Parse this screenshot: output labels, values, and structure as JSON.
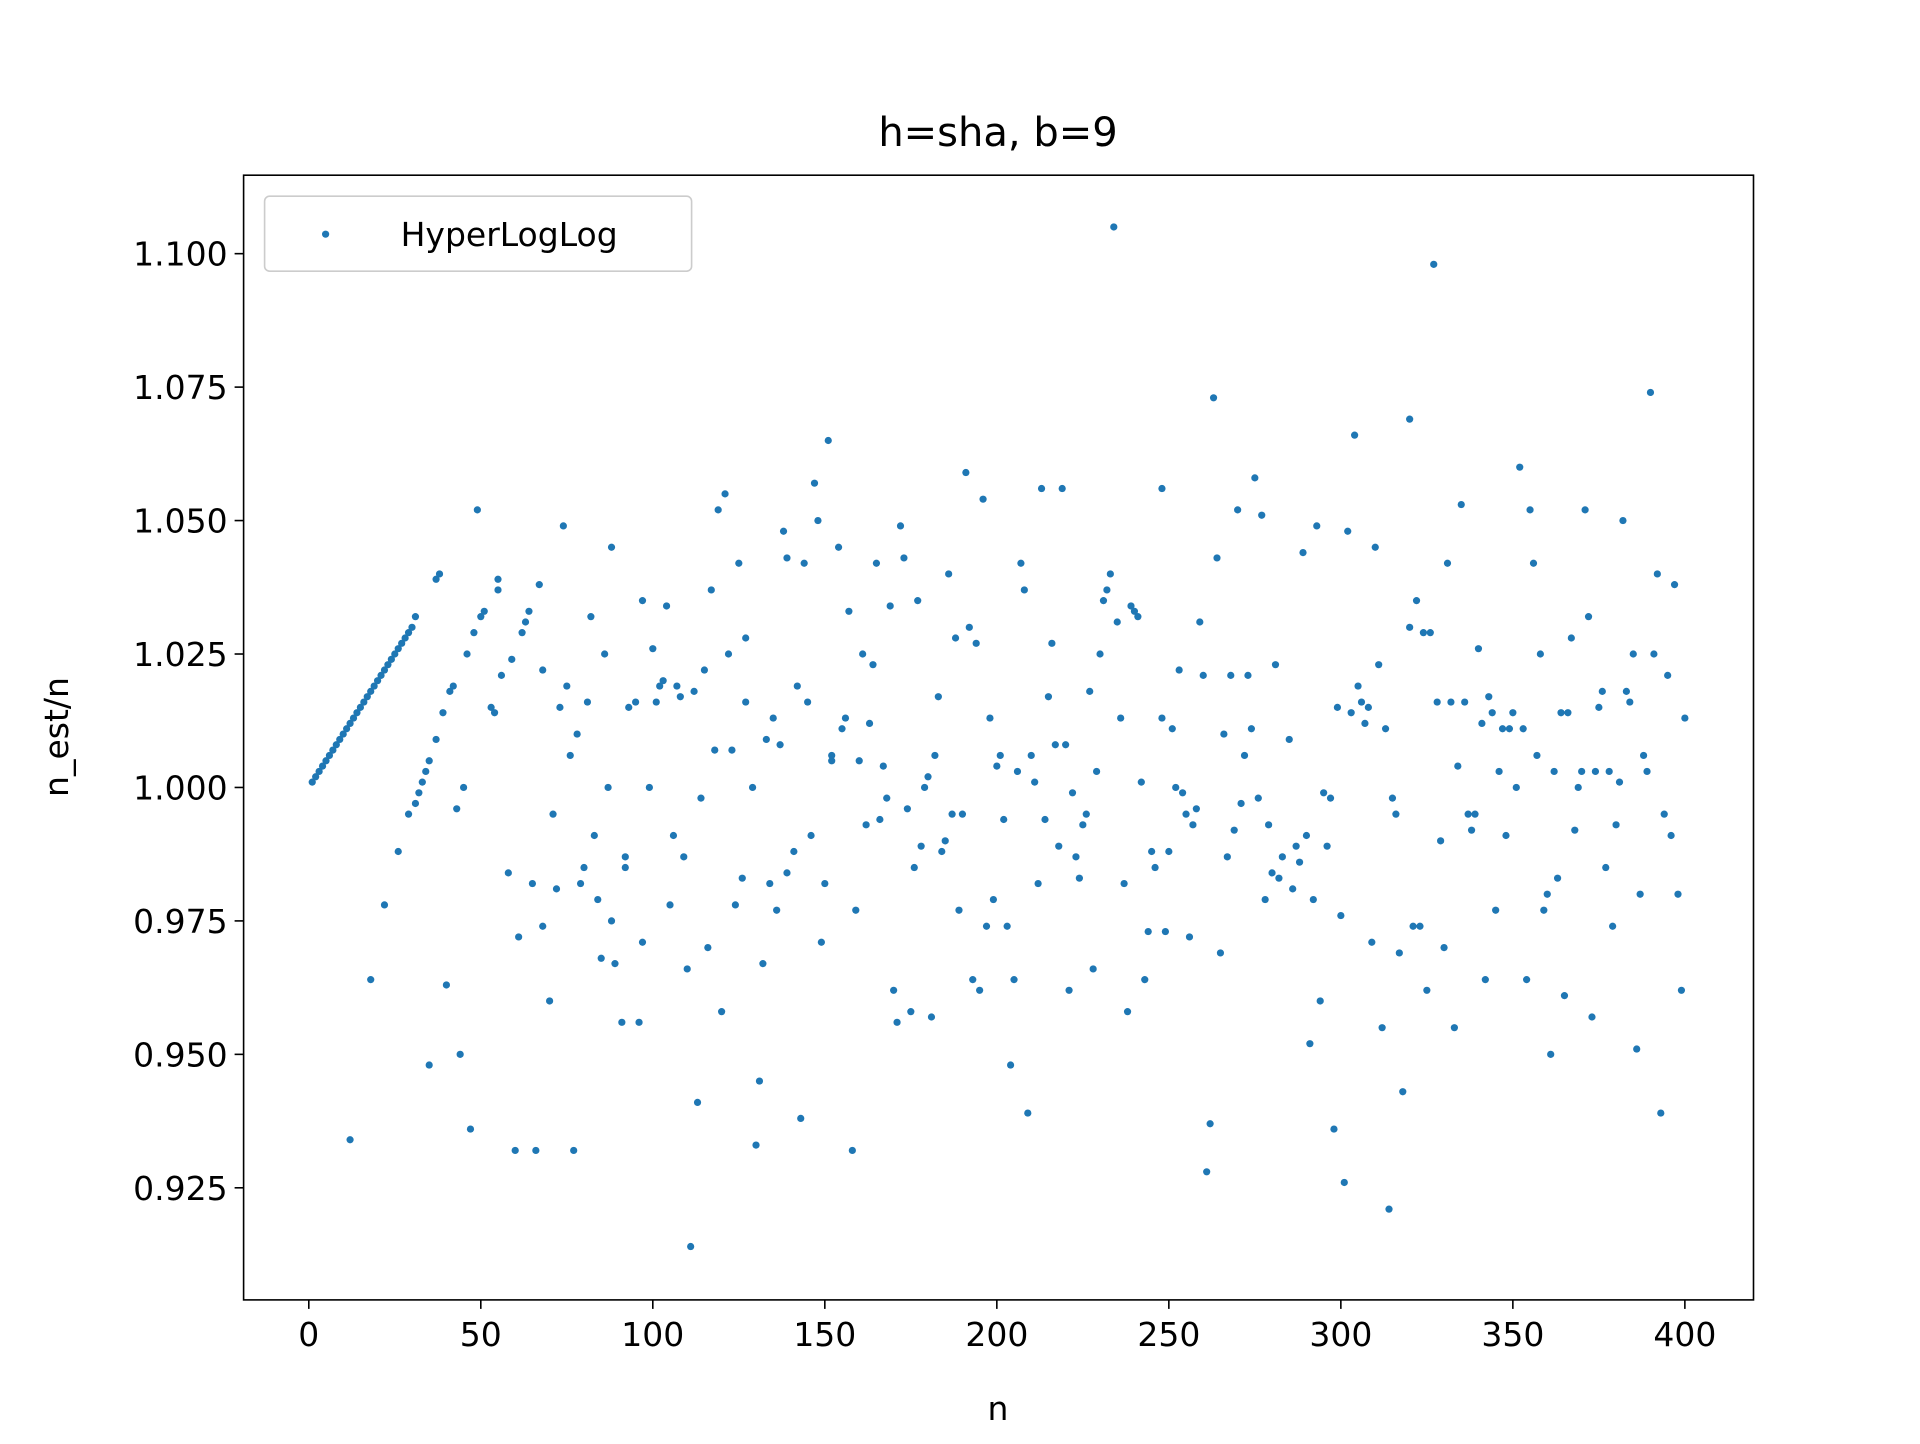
{
  "chart_data": {
    "type": "scatter",
    "title": "h=sha, b=9",
    "x_label": "n",
    "y_label": "n_est/n",
    "xlim": [
      -18.95,
      419.95
    ],
    "ylim": [
      0.904,
      1.1147
    ],
    "xticks": [
      0,
      50,
      100,
      150,
      200,
      250,
      300,
      350,
      400
    ],
    "yticks": [
      {
        "value": 0.925,
        "label": "0.925"
      },
      {
        "value": 0.95,
        "label": "0.950"
      },
      {
        "value": 0.975,
        "label": "0.975"
      },
      {
        "value": 1.0,
        "label": "1.000"
      },
      {
        "value": 1.025,
        "label": "1.025"
      },
      {
        "value": 1.05,
        "label": "1.050"
      },
      {
        "value": 1.075,
        "label": "1.075"
      },
      {
        "value": 1.1,
        "label": "1.100"
      }
    ],
    "grid": false,
    "legend": "upper left",
    "series": [
      {
        "name": "HyperLogLog",
        "color": "#1f77b4",
        "x": [
          1,
          2,
          3,
          4,
          5,
          6,
          7,
          8,
          9,
          10,
          11,
          12,
          13,
          14,
          15,
          16,
          17,
          18,
          19,
          20,
          21,
          22,
          23,
          24,
          25,
          26,
          27,
          28,
          29,
          30,
          31,
          12,
          18,
          22,
          26,
          29,
          31,
          32,
          33,
          34,
          35,
          35,
          37,
          37,
          38,
          39,
          40,
          41,
          42,
          43,
          44,
          45,
          46,
          47,
          48,
          49,
          50,
          51,
          53,
          54,
          55,
          55,
          56,
          58,
          59,
          60,
          61,
          62,
          63,
          64,
          65,
          66,
          67,
          68,
          68,
          70,
          71,
          72,
          73,
          74,
          75,
          76,
          77,
          78,
          79,
          80,
          81,
          82,
          83,
          84,
          85,
          86,
          87,
          88,
          88,
          89,
          91,
          92,
          92,
          93,
          95,
          96,
          97,
          97,
          99,
          100,
          101,
          102,
          103,
          104,
          105,
          106,
          107,
          108,
          109,
          110,
          111,
          112,
          113,
          114,
          115,
          116,
          117,
          118,
          119,
          120,
          121,
          122,
          123,
          124,
          125,
          126,
          127,
          127,
          129,
          130,
          131,
          132,
          133,
          134,
          135,
          136,
          137,
          138,
          139,
          139,
          141,
          142,
          143,
          144,
          145,
          146,
          147,
          148,
          149,
          150,
          151,
          152,
          152,
          154,
          155,
          156,
          157,
          158,
          159,
          160,
          161,
          162,
          163,
          164,
          165,
          166,
          167,
          168,
          169,
          170,
          171,
          172,
          173,
          174,
          175,
          176,
          177,
          178,
          179,
          180,
          181,
          182,
          183,
          184,
          185,
          186,
          187,
          188,
          189,
          190,
          191,
          192,
          193,
          194,
          195,
          196,
          197,
          198,
          199,
          200,
          201,
          202,
          203,
          204,
          205,
          206,
          207,
          208,
          209,
          210,
          211,
          212,
          213,
          214,
          215,
          216,
          217,
          218,
          219,
          220,
          221,
          222,
          223,
          224,
          225,
          226,
          227,
          228,
          229,
          230,
          231,
          232,
          233,
          234,
          235,
          236,
          237,
          238,
          239,
          240,
          241,
          242,
          243,
          244,
          245,
          246,
          248,
          248,
          249,
          250,
          251,
          252,
          253,
          254,
          255,
          256,
          257,
          258,
          259,
          260,
          261,
          262,
          263,
          264,
          265,
          266,
          267,
          268,
          269,
          270,
          271,
          272,
          273,
          274,
          275,
          276,
          277,
          278,
          279,
          280,
          281,
          282,
          283,
          285,
          286,
          287,
          288,
          289,
          290,
          291,
          292,
          293,
          294,
          295,
          296,
          297,
          298,
          299,
          300,
          301,
          302,
          303,
          304,
          305,
          306,
          307,
          308,
          309,
          310,
          311,
          312,
          313,
          314,
          315,
          316,
          317,
          318,
          320,
          320,
          321,
          322,
          323,
          324,
          325,
          326,
          327,
          328,
          329,
          330,
          331,
          332,
          333,
          334,
          335,
          336,
          337,
          338,
          339,
          340,
          341,
          342,
          343,
          344,
          345,
          346,
          347,
          348,
          349,
          350,
          351,
          352,
          353,
          354,
          355,
          356,
          357,
          358,
          359,
          360,
          361,
          362,
          363,
          364,
          365,
          366,
          367,
          368,
          369,
          370,
          371,
          372,
          373,
          374,
          375,
          376,
          377,
          378,
          379,
          380,
          381,
          382,
          383,
          384,
          385,
          386,
          387,
          388,
          389,
          390,
          391,
          392,
          393,
          394,
          395,
          396,
          397,
          398,
          399,
          400
        ],
        "y": [
          1.001,
          1.002,
          1.003,
          1.004,
          1.005,
          1.006,
          1.007,
          1.008,
          1.009,
          1.01,
          1.011,
          1.012,
          1.013,
          1.014,
          1.015,
          1.016,
          1.017,
          1.018,
          1.019,
          1.02,
          1.021,
          1.022,
          1.023,
          1.024,
          1.025,
          1.026,
          1.027,
          1.028,
          1.029,
          1.03,
          1.032,
          0.934,
          0.964,
          0.978,
          0.988,
          0.995,
          0.997,
          0.999,
          1.001,
          1.003,
          1.005,
          0.948,
          1.009,
          1.039,
          1.04,
          1.014,
          0.963,
          1.018,
          1.019,
          0.996,
          0.95,
          1.0,
          1.025,
          0.936,
          1.029,
          1.052,
          1.032,
          1.033,
          1.015,
          1.014,
          1.037,
          1.039,
          1.021,
          0.984,
          1.024,
          0.932,
          0.972,
          1.029,
          1.031,
          1.033,
          0.982,
          0.932,
          1.038,
          1.022,
          0.974,
          0.96,
          0.995,
          0.981,
          1.015,
          1.049,
          1.019,
          1.006,
          0.932,
          1.01,
          0.982,
          0.985,
          1.016,
          1.032,
          0.991,
          0.979,
          0.968,
          1.025,
          1.0,
          0.975,
          1.045,
          0.967,
          0.956,
          0.985,
          0.987,
          1.015,
          1.016,
          0.956,
          0.971,
          1.035,
          1.0,
          1.026,
          1.016,
          1.019,
          1.02,
          1.034,
          0.978,
          0.991,
          1.019,
          1.017,
          0.987,
          0.966,
          0.914,
          1.018,
          0.941,
          0.998,
          1.022,
          0.97,
          1.037,
          1.007,
          1.052,
          0.958,
          1.055,
          1.025,
          1.007,
          0.978,
          1.042,
          0.983,
          1.016,
          1.028,
          1.0,
          0.933,
          0.945,
          0.967,
          1.009,
          0.982,
          1.013,
          0.977,
          1.008,
          1.048,
          0.984,
          1.043,
          0.988,
          1.019,
          0.938,
          1.042,
          1.016,
          0.991,
          1.057,
          1.05,
          0.971,
          0.982,
          1.065,
          1.005,
          1.006,
          1.045,
          1.011,
          1.013,
          1.033,
          0.932,
          0.977,
          1.005,
          1.025,
          0.993,
          1.012,
          1.023,
          1.042,
          0.994,
          1.004,
          0.998,
          1.034,
          0.962,
          0.956,
          1.049,
          1.043,
          0.996,
          0.958,
          0.985,
          1.035,
          0.989,
          1.0,
          1.002,
          0.957,
          1.006,
          1.017,
          0.988,
          0.99,
          1.04,
          0.995,
          1.028,
          0.977,
          0.995,
          1.059,
          1.03,
          0.964,
          1.027,
          0.962,
          1.054,
          0.974,
          1.013,
          0.979,
          1.004,
          1.006,
          0.994,
          0.974,
          0.948,
          0.964,
          1.003,
          1.042,
          1.037,
          0.939,
          1.006,
          1.001,
          0.982,
          1.056,
          0.994,
          1.017,
          1.027,
          1.008,
          0.989,
          1.056,
          1.008,
          0.962,
          0.999,
          0.987,
          0.983,
          0.993,
          0.995,
          1.018,
          0.966,
          1.003,
          1.025,
          1.035,
          1.037,
          1.04,
          1.105,
          1.031,
          1.013,
          0.982,
          0.958,
          1.034,
          1.033,
          1.032,
          1.001,
          0.964,
          0.973,
          0.988,
          0.985,
          1.013,
          1.056,
          0.973,
          0.988,
          1.011,
          1.0,
          1.022,
          0.999,
          0.995,
          0.972,
          0.993,
          0.996,
          1.031,
          1.021,
          0.928,
          0.937,
          1.073,
          1.043,
          0.969,
          1.01,
          0.987,
          1.021,
          0.992,
          1.052,
          0.997,
          1.006,
          1.021,
          1.011,
          1.058,
          0.998,
          1.051,
          0.979,
          0.993,
          0.984,
          1.023,
          0.983,
          0.987,
          1.009,
          0.981,
          0.989,
          0.986,
          1.044,
          0.991,
          0.952,
          0.979,
          1.049,
          0.96,
          0.999,
          0.989,
          0.998,
          0.936,
          1.015,
          0.976,
          0.926,
          1.048,
          1.014,
          1.066,
          1.019,
          1.016,
          1.012,
          1.015,
          0.971,
          1.045,
          1.023,
          0.955,
          1.011,
          0.921,
          0.998,
          0.995,
          0.969,
          0.943,
          1.069,
          1.03,
          0.974,
          1.035,
          0.974,
          1.029,
          0.962,
          1.029,
          1.098,
          1.016,
          0.99,
          0.97,
          1.042,
          1.016,
          0.955,
          1.004,
          1.053,
          1.016,
          0.995,
          0.992,
          0.995,
          1.026,
          1.012,
          0.964,
          1.017,
          1.014,
          0.977,
          1.003,
          1.011,
          0.991,
          1.011,
          1.014,
          1.0,
          1.06,
          1.011,
          0.964,
          1.052,
          1.042,
          1.006,
          1.025,
          0.977,
          0.98,
          0.95,
          1.003,
          0.983,
          1.014,
          0.961,
          1.014,
          1.028,
          0.992,
          1.0,
          1.003,
          1.052,
          1.032,
          0.957,
          1.003,
          1.015,
          1.018,
          0.985,
          1.003,
          0.974,
          0.993,
          1.001,
          1.05,
          1.018,
          1.016,
          1.025,
          0.951,
          0.98,
          1.006,
          1.003,
          1.074,
          1.025,
          1.04,
          0.939,
          0.995,
          1.021,
          0.991,
          1.038,
          0.98,
          0.962,
          1.013
        ]
      }
    ]
  }
}
